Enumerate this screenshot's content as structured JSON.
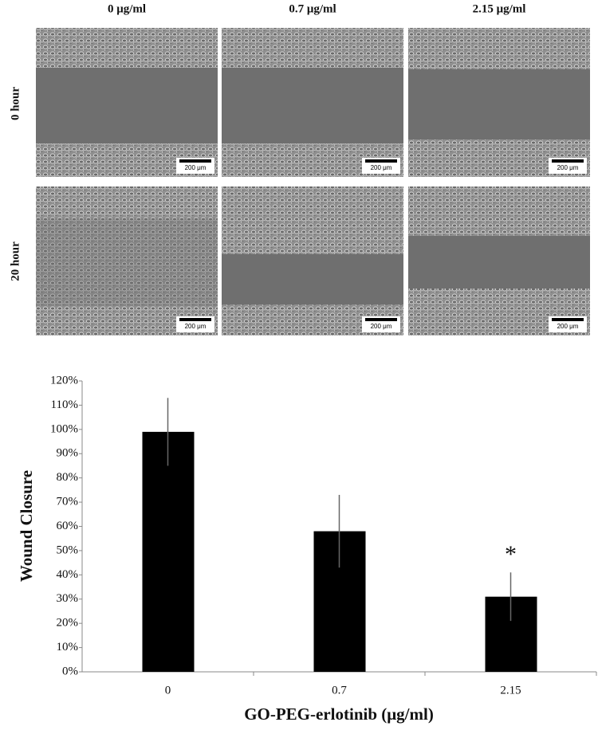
{
  "panels": {
    "columns": [
      "0 μg/ml",
      "0.7 μg/ml",
      "2.15 μg/ml"
    ],
    "rows": [
      "0 hour",
      "20 hour"
    ],
    "scale_bar": "200 μm"
  },
  "chart_data": {
    "type": "bar",
    "y_label": "Wound Closure",
    "x_label": "GO-PEG-erlotinib (μg/ml)",
    "categories": [
      "0",
      "0.7",
      "2.15"
    ],
    "values": [
      99,
      58,
      31
    ],
    "errors": [
      14,
      15,
      10
    ],
    "color": "#000000",
    "annotation": "*",
    "ylim": [
      0,
      120
    ],
    "yticks": [
      {
        "value": 0,
        "label": "0%"
      },
      {
        "value": 10,
        "label": "10%"
      },
      {
        "value": 20,
        "label": "20%"
      },
      {
        "value": 30,
        "label": "30%"
      },
      {
        "value": 40,
        "label": "40%"
      },
      {
        "value": 50,
        "label": "50%"
      },
      {
        "value": 60,
        "label": "60%"
      },
      {
        "value": 70,
        "label": "70%"
      },
      {
        "value": 80,
        "label": "80%"
      },
      {
        "value": 90,
        "label": "90%"
      },
      {
        "value": 100,
        "label": "100%"
      },
      {
        "value": 110,
        "label": "110%"
      },
      {
        "value": 120,
        "label": "120%"
      }
    ]
  }
}
